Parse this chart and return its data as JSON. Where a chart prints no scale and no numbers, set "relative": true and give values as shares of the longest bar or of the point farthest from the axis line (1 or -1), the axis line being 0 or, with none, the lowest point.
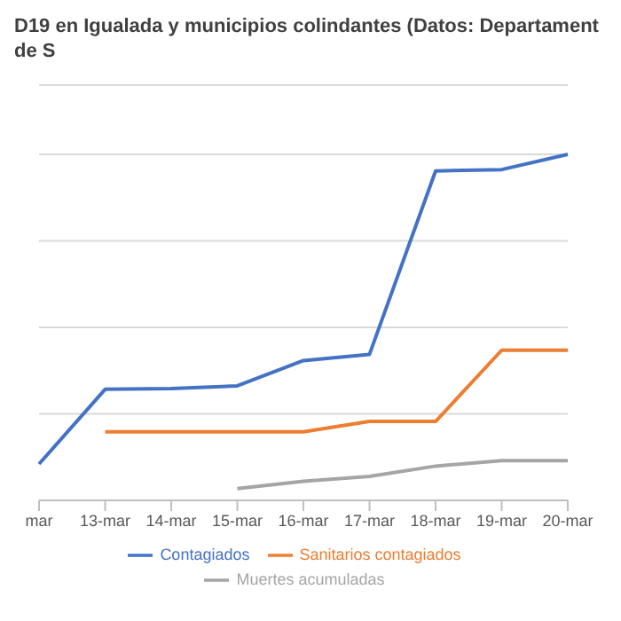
{
  "chart_data": {
    "type": "line",
    "title": "D19 en Igualada y municipios colindantes (Datos: Departament de S",
    "categories": [
      "mar",
      "13-mar",
      "14-mar",
      "15-mar",
      "16-mar",
      "17-mar",
      "18-mar",
      "19-mar",
      "20-mar"
    ],
    "relative": true,
    "series": [
      {
        "name": "Contagiados",
        "color": "#4472c4",
        "values": [
          0.105,
          0.321,
          0.323,
          0.331,
          0.404,
          0.422,
          0.952,
          0.956,
          1
        ]
      },
      {
        "name": "Sanitarios contagiados",
        "color": "#ed7d31",
        "values": [
          null,
          0.198,
          0.198,
          0.198,
          0.198,
          0.228,
          0.228,
          0.434,
          0.434
        ]
      },
      {
        "name": "Muertes acumuladas",
        "color": "#a5a5a5",
        "values": [
          null,
          null,
          null,
          0.034,
          0.055,
          0.069,
          0.099,
          0.115,
          0.115
        ]
      }
    ],
    "grid": "y",
    "legend": "bottom",
    "marker": "none",
    "line_style": "solid"
  }
}
